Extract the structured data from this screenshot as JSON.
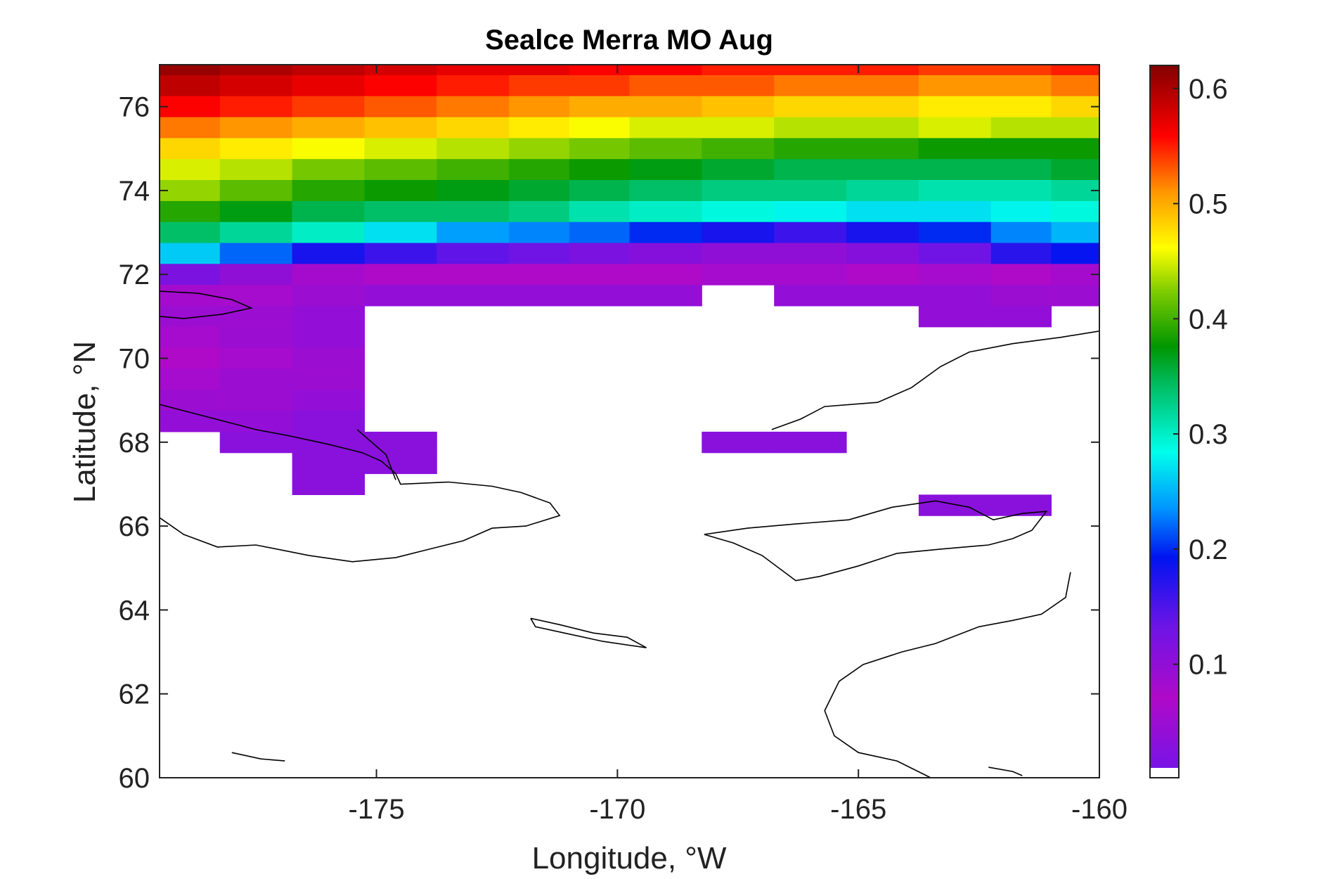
{
  "chart_data": {
    "type": "heatmap",
    "title": "Sealce Merra MO Aug",
    "xlabel": "Longitude, °W",
    "ylabel": "Latitude, °N",
    "xlim": [
      -179.5,
      -160
    ],
    "ylim": [
      60,
      77
    ],
    "xticks": [
      -175,
      -170,
      -165,
      -160
    ],
    "xtick_labels": [
      "-175",
      "-170",
      "-165",
      "-160"
    ],
    "yticks": [
      60,
      62,
      64,
      66,
      68,
      70,
      72,
      74,
      76
    ],
    "ytick_labels": [
      "60",
      "62",
      "64",
      "66",
      "68",
      "70",
      "72",
      "74",
      "76"
    ],
    "colorbar": {
      "colormap": "rainbow",
      "range": [
        0.01,
        0.62
      ],
      "ticks": [
        0.1,
        0.2,
        0.3,
        0.4,
        0.5,
        0.6
      ],
      "tick_labels": [
        "0.1",
        "0.2",
        "0.3",
        "0.4",
        "0.5",
        "0.6"
      ]
    },
    "cells": {
      "lon_edges": [
        -179.5,
        -178.25,
        -176.75,
        -175.25,
        -173.75,
        -172.25,
        -171.0,
        -169.75,
        -168.25,
        -166.75,
        -165.25,
        -163.75,
        -162.25,
        -161.0,
        -160.0
      ],
      "lat_edges": [
        77.0,
        76.75,
        76.25,
        75.75,
        75.25,
        74.75,
        74.25,
        73.75,
        73.25,
        72.75,
        72.25,
        71.75,
        71.25,
        70.75,
        70.25,
        69.75,
        69.25,
        68.75,
        68.25,
        67.75,
        67.25,
        66.75,
        66.25
      ],
      "values_by_row_from_north": [
        [
          0.61,
          0.6,
          0.59,
          0.58,
          0.57,
          0.57,
          0.56,
          0.56,
          0.55,
          0.55,
          0.55,
          0.54,
          0.54,
          0.55
        ],
        [
          0.59,
          0.58,
          0.57,
          0.56,
          0.55,
          0.54,
          0.54,
          0.53,
          0.53,
          0.52,
          0.52,
          0.51,
          0.51,
          0.52
        ],
        [
          0.56,
          0.55,
          0.54,
          0.53,
          0.52,
          0.51,
          0.5,
          0.5,
          0.49,
          0.48,
          0.48,
          0.47,
          0.47,
          0.48
        ],
        [
          0.52,
          0.51,
          0.5,
          0.49,
          0.48,
          0.47,
          0.46,
          0.45,
          0.45,
          0.44,
          0.44,
          0.45,
          0.44,
          0.44
        ],
        [
          0.48,
          0.47,
          0.46,
          0.45,
          0.44,
          0.43,
          0.42,
          0.41,
          0.4,
          0.39,
          0.39,
          0.38,
          0.38,
          0.38
        ],
        [
          0.45,
          0.44,
          0.42,
          0.41,
          0.4,
          0.39,
          0.38,
          0.37,
          0.36,
          0.35,
          0.35,
          0.35,
          0.35,
          0.36
        ],
        [
          0.43,
          0.41,
          0.39,
          0.38,
          0.37,
          0.36,
          0.35,
          0.34,
          0.33,
          0.33,
          0.32,
          0.31,
          0.31,
          0.32
        ],
        [
          0.39,
          0.37,
          0.35,
          0.34,
          0.34,
          0.33,
          0.31,
          0.3,
          0.29,
          0.28,
          0.27,
          0.27,
          0.28,
          0.29
        ],
        [
          0.34,
          0.32,
          0.3,
          0.27,
          0.24,
          0.23,
          0.22,
          0.2,
          0.18,
          0.16,
          0.18,
          0.2,
          0.23,
          0.25
        ],
        [
          0.26,
          0.22,
          0.18,
          0.16,
          0.14,
          0.13,
          0.12,
          0.11,
          0.1,
          0.1,
          0.11,
          0.13,
          0.17,
          0.19
        ],
        [
          0.12,
          0.1,
          0.08,
          0.07,
          0.07,
          0.07,
          0.07,
          0.07,
          0.06,
          0.06,
          0.07,
          0.06,
          0.07,
          0.08
        ],
        [
          0.08,
          0.06,
          0.05,
          0.04,
          0.04,
          0.04,
          0.04,
          0.04,
          null,
          0.04,
          0.04,
          0.04,
          0.05,
          0.05
        ],
        [
          0.05,
          0.05,
          0.04,
          null,
          null,
          null,
          null,
          null,
          null,
          null,
          null,
          0.04,
          0.04,
          null
        ],
        [
          0.06,
          0.05,
          0.04,
          null,
          null,
          null,
          null,
          null,
          null,
          null,
          null,
          null,
          null,
          null
        ],
        [
          0.07,
          0.06,
          0.05,
          null,
          null,
          null,
          null,
          null,
          null,
          null,
          null,
          null,
          null,
          null
        ],
        [
          0.06,
          0.05,
          0.05,
          null,
          null,
          null,
          null,
          null,
          null,
          null,
          null,
          null,
          null,
          null
        ],
        [
          0.05,
          0.05,
          0.04,
          null,
          null,
          null,
          null,
          null,
          null,
          null,
          null,
          null,
          null,
          null
        ],
        [
          0.04,
          0.04,
          0.03,
          null,
          null,
          null,
          null,
          null,
          null,
          null,
          null,
          null,
          null,
          null
        ],
        [
          null,
          0.03,
          0.03,
          0.03,
          null,
          null,
          null,
          null,
          0.03,
          0.03,
          null,
          null,
          null,
          null
        ],
        [
          null,
          null,
          0.03,
          0.03,
          null,
          null,
          null,
          null,
          null,
          null,
          null,
          null,
          null,
          null
        ],
        [
          null,
          null,
          0.03,
          null,
          null,
          null,
          null,
          null,
          null,
          null,
          null,
          null,
          null,
          null
        ],
        [
          null,
          null,
          null,
          null,
          null,
          null,
          null,
          null,
          null,
          null,
          null,
          0.03,
          0.03,
          null
        ]
      ]
    }
  }
}
